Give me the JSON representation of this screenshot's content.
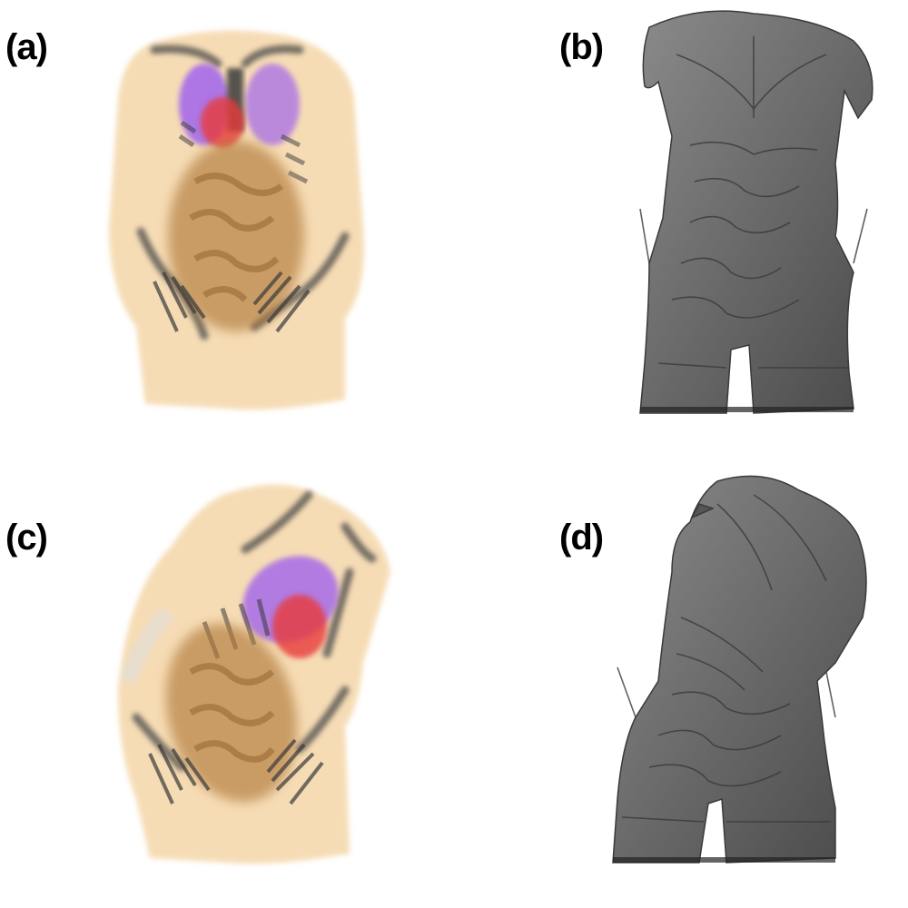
{
  "panels": [
    {
      "id": "a",
      "label": "(a)",
      "style": "volume-render-color",
      "colors": {
        "skin": "#f5d6a8",
        "bone": "#4a4a4a",
        "lung": "#9b5cf0",
        "heart": "#e83a3a",
        "bowel": "#b07a3a"
      }
    },
    {
      "id": "b",
      "label": "(b)",
      "style": "surface-render-gray",
      "colors": {
        "surface": "#6e6e6e"
      }
    },
    {
      "id": "c",
      "label": "(c)",
      "style": "volume-render-color-rotated",
      "colors": {
        "skin": "#f5d6a8",
        "bone": "#4a4a4a",
        "lung": "#9b5cf0",
        "heart": "#e83a3a",
        "bowel": "#b07a3a"
      }
    },
    {
      "id": "d",
      "label": "(d)",
      "style": "surface-render-gray-rotated",
      "colors": {
        "surface": "#6e6e6e"
      }
    }
  ]
}
